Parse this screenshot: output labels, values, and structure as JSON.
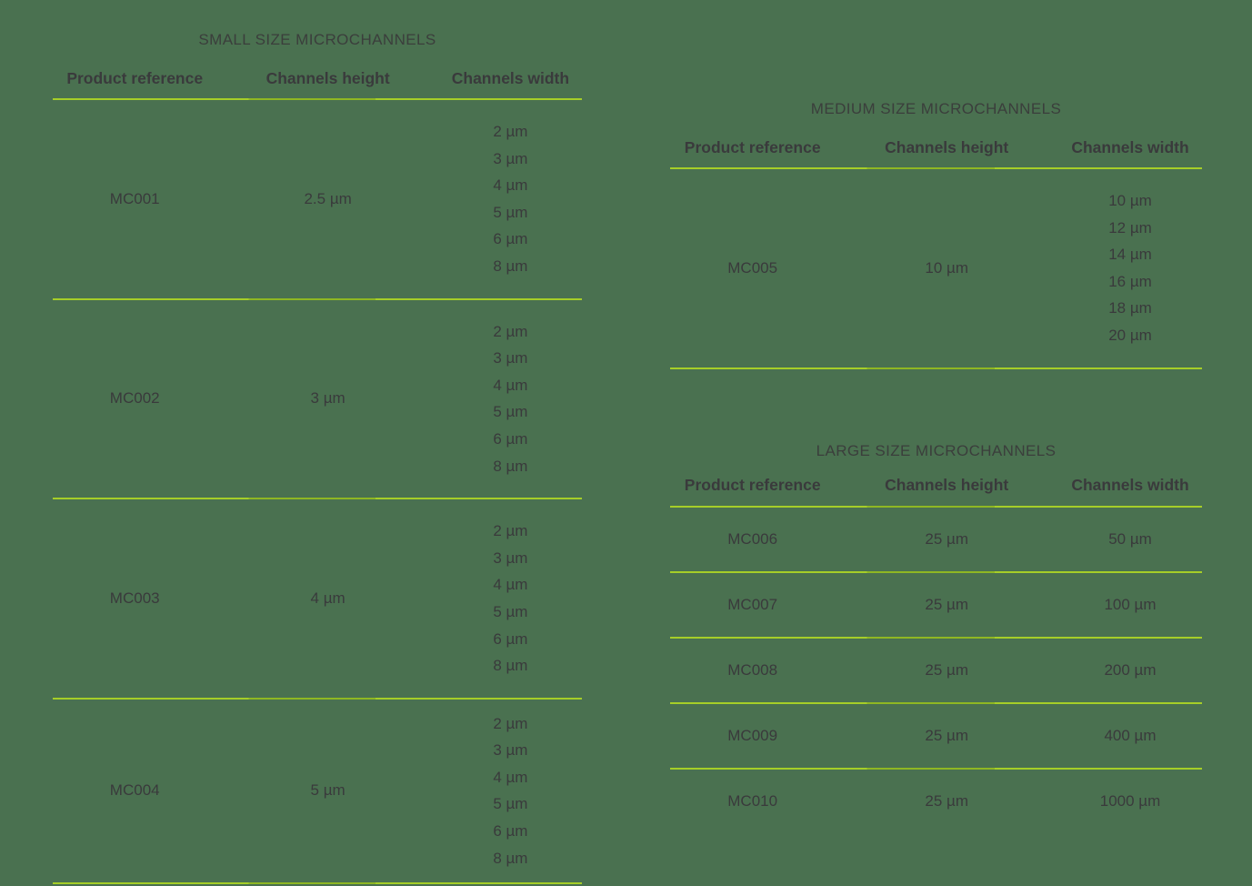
{
  "colors": {
    "background": "#4A7150",
    "text": "#3A3A3C",
    "rule_bright": "#A6CE28",
    "rule_dim": "#8FB723"
  },
  "tables": {
    "small": {
      "title": "SMALL SIZE MICROCHANNELS",
      "headers": [
        "Product reference",
        "Channels height",
        "Channels width"
      ],
      "rows": [
        {
          "ref": "MC001",
          "height": "2.5 µm",
          "widths": [
            "2 µm",
            "3 µm",
            "4 µm",
            "5 µm",
            "6 µm",
            "8 µm"
          ]
        },
        {
          "ref": "MC002",
          "height": "3 µm",
          "widths": [
            "2 µm",
            "3 µm",
            "4 µm",
            "5 µm",
            "6 µm",
            "8 µm"
          ]
        },
        {
          "ref": "MC003",
          "height": "4 µm",
          "widths": [
            "2 µm",
            "3 µm",
            "4 µm",
            "5 µm",
            "6 µm",
            "8 µm"
          ]
        },
        {
          "ref": "MC004",
          "height": "5 µm",
          "widths": [
            "2 µm",
            "3 µm",
            "4 µm",
            "5 µm",
            "6 µm",
            "8 µm"
          ]
        }
      ]
    },
    "medium": {
      "title": "MEDIUM SIZE MICROCHANNELS",
      "headers": [
        "Product reference",
        "Channels height",
        "Channels width"
      ],
      "rows": [
        {
          "ref": "MC005",
          "height": "10 µm",
          "widths": [
            "10 µm",
            "12 µm",
            "14 µm",
            "16 µm",
            "18 µm",
            "20 µm"
          ]
        }
      ]
    },
    "large": {
      "title": "LARGE SIZE MICROCHANNELS",
      "headers": [
        "Product reference",
        "Channels height",
        "Channels width"
      ],
      "rows": [
        {
          "ref": "MC006",
          "height": "25 µm",
          "width": "50 µm"
        },
        {
          "ref": "MC007",
          "height": "25 µm",
          "width": "100 µm"
        },
        {
          "ref": "MC008",
          "height": "25 µm",
          "width": "200 µm"
        },
        {
          "ref": "MC009",
          "height": "25 µm",
          "width": "400 µm"
        },
        {
          "ref": "MC010",
          "height": "25 µm",
          "width": "1000 µm"
        }
      ]
    }
  }
}
